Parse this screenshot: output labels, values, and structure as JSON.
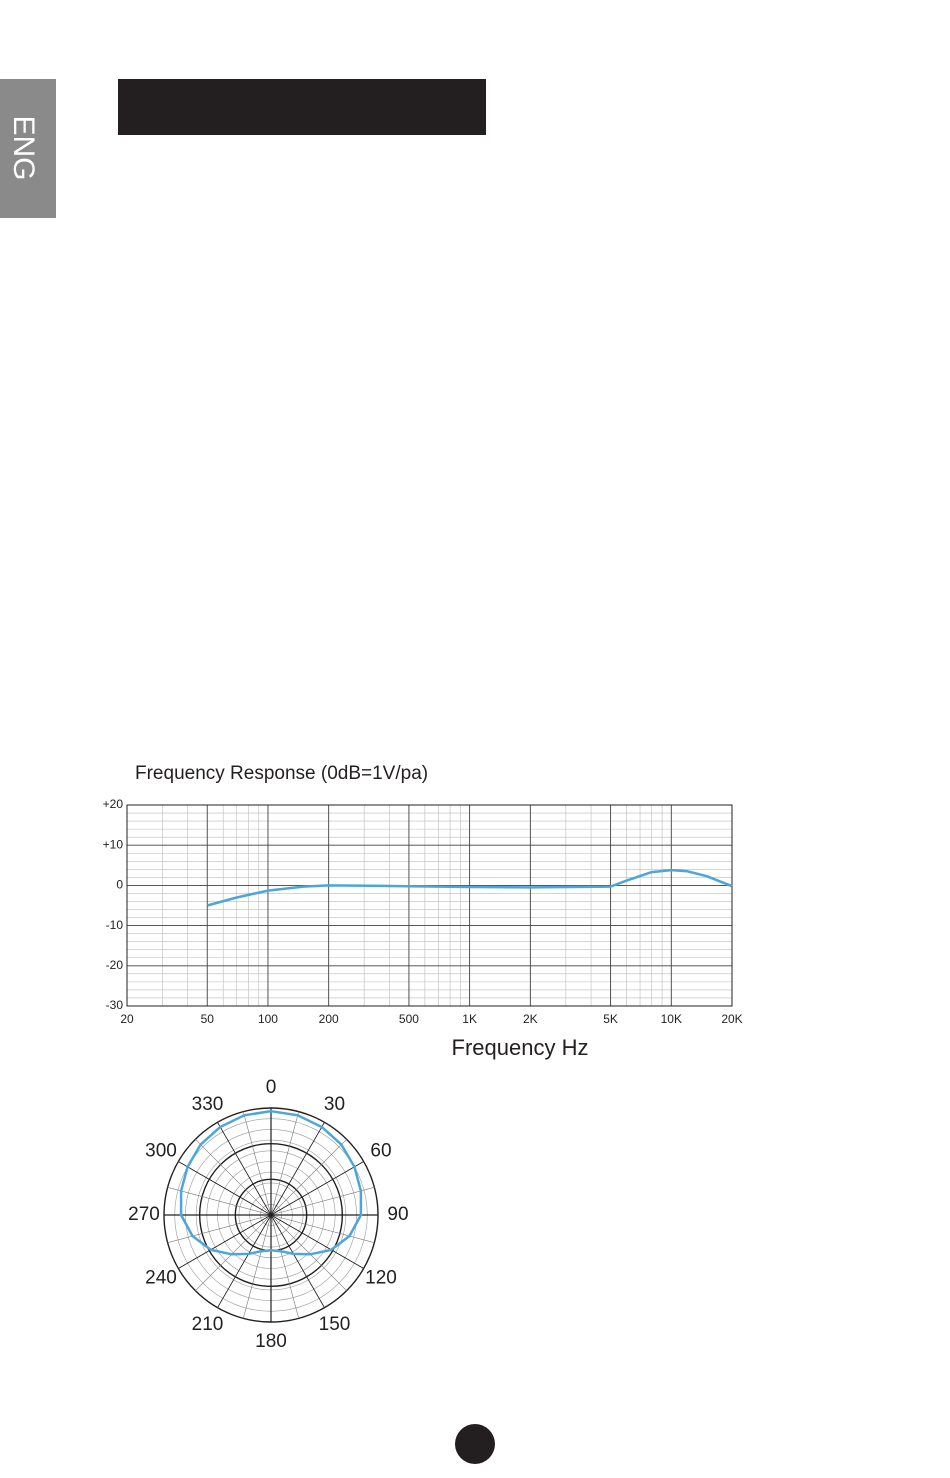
{
  "side_tab": "ENG",
  "chart_data": [
    {
      "type": "line",
      "title": "Frequency Response (0dB=1V/pa)",
      "x_label": "Frequency Hz",
      "x_scale": "log",
      "xlim": [
        20,
        20000
      ],
      "xticks": [
        20,
        50,
        100,
        200,
        500,
        {
          "value": 1000,
          "label": "1K"
        },
        {
          "value": 2000,
          "label": "2K"
        },
        {
          "value": 5000,
          "label": "5K"
        },
        {
          "value": 10000,
          "label": "10K"
        },
        {
          "value": 20000,
          "label": "20K"
        }
      ],
      "ylim": [
        -30,
        20
      ],
      "yticks": [
        {
          "value": 20,
          "label": "+20"
        },
        {
          "value": 10,
          "label": "+10"
        },
        0,
        -10,
        -20,
        -30
      ],
      "grid": true,
      "color": "#4da6d9",
      "x": [
        50,
        70,
        100,
        150,
        200,
        500,
        1000,
        2000,
        5000,
        6000,
        8000,
        10000,
        12000,
        15000,
        20000
      ],
      "values": [
        -5,
        -3,
        -1.3,
        -0.3,
        0,
        -0.2,
        -0.4,
        -0.5,
        -0.3,
        1.2,
        3.3,
        3.8,
        3.5,
        2.3,
        -0.2
      ]
    },
    {
      "type": "polar",
      "rlim": [
        0,
        1
      ],
      "color": "#4da6d9",
      "theta_ticks": [
        0,
        30,
        60,
        90,
        120,
        150,
        180,
        210,
        240,
        270,
        300,
        330
      ],
      "theta": [
        0,
        15,
        30,
        45,
        60,
        75,
        90,
        105,
        120,
        135,
        150,
        165,
        180,
        195,
        210,
        225,
        240,
        255,
        270,
        285,
        300,
        315,
        330,
        345
      ],
      "values": [
        0.97,
        0.965,
        0.95,
        0.93,
        0.9,
        0.87,
        0.84,
        0.76,
        0.65,
        0.52,
        0.42,
        0.35,
        0.33,
        0.35,
        0.42,
        0.52,
        0.65,
        0.76,
        0.84,
        0.87,
        0.9,
        0.93,
        0.95,
        0.965
      ]
    }
  ]
}
